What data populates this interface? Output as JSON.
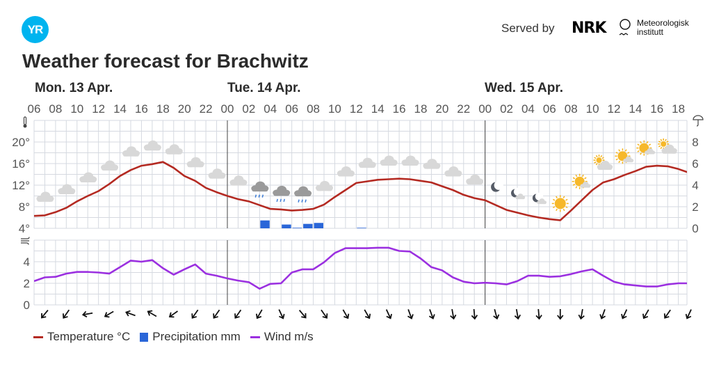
{
  "header": {
    "logo_text": "YR",
    "served_by": "Served by",
    "nrk_logo": "NRK",
    "met_line1": "Meteorologisk",
    "met_line2": "institutt",
    "title": "Weather forecast for Brachwitz"
  },
  "days": [
    {
      "label": "Mon. 13 Apr.",
      "start_hour_index": 0
    },
    {
      "label": "Tue. 14 Apr.",
      "start_hour_index": 18
    },
    {
      "label": "Wed. 15 Apr.",
      "start_hour_index": 42
    }
  ],
  "hour_labels": [
    "06",
    "08",
    "10",
    "12",
    "14",
    "16",
    "18",
    "20",
    "22",
    "00",
    "02",
    "04",
    "06",
    "08",
    "10",
    "12",
    "14",
    "16",
    "18",
    "20",
    "22",
    "00",
    "02",
    "04",
    "06",
    "08",
    "10",
    "12",
    "14",
    "16",
    "18"
  ],
  "axes": {
    "temp_ticks": [
      "20°",
      "16°",
      "12°",
      "8°",
      "4°"
    ],
    "temp_tick_values": [
      20,
      16,
      12,
      8,
      4
    ],
    "temp_range": [
      4,
      24
    ],
    "precip_ticks": [
      "8",
      "6",
      "4",
      "2",
      "0"
    ],
    "precip_tick_values": [
      8,
      6,
      4,
      2,
      0
    ],
    "precip_range": [
      0,
      10
    ],
    "wind_ticks": [
      "4",
      "2",
      "0"
    ],
    "wind_tick_values": [
      4,
      2,
      0
    ],
    "wind_range": [
      0,
      6
    ],
    "hours_span": 60.8
  },
  "colors": {
    "temperature": "#b42a22",
    "precipitation": "#2a66d8",
    "wind": "#9b30e0",
    "grid": "#d5d9e0",
    "day_line": "#444444"
  },
  "chart_data": {
    "type": "line",
    "title": "Weather forecast for Brachwitz",
    "x_unit": "hours from Mon 13 Apr 06:00",
    "temperature_c": [
      6.3,
      6.4,
      7.0,
      7.8,
      9.0,
      10.0,
      10.9,
      12.2,
      13.7,
      14.8,
      15.6,
      15.9,
      16.3,
      15.2,
      13.7,
      12.8,
      11.5,
      10.7,
      10.0,
      9.4,
      9.0,
      8.3,
      7.6,
      7.5,
      7.3,
      7.4,
      7.6,
      8.4,
      9.8,
      11.1,
      12.4,
      12.7,
      13.0,
      13.1,
      13.2,
      13.1,
      12.8,
      12.5,
      11.8,
      11.1,
      10.2,
      9.6,
      9.2,
      8.3,
      7.4,
      6.9,
      6.4,
      6.0,
      5.7,
      5.5,
      7.3,
      9.2,
      11.1,
      12.5,
      13.1,
      13.9,
      14.6,
      15.4,
      15.6,
      15.5,
      15.0,
      14.3
    ],
    "precipitation_mm": [
      {
        "hour": 21,
        "value": 0.73
      },
      {
        "hour": 23,
        "value": 0.35
      },
      {
        "hour": 24,
        "value": 0.05
      },
      {
        "hour": 25,
        "value": 0.41
      },
      {
        "hour": 26,
        "value": 0.5
      },
      {
        "hour": 30,
        "value": 0.05
      }
    ],
    "wind_ms": [
      2.2,
      2.55,
      2.6,
      2.9,
      3.05,
      3.05,
      3.0,
      2.9,
      3.5,
      4.1,
      4.0,
      4.15,
      3.4,
      2.8,
      3.3,
      3.75,
      2.9,
      2.7,
      2.45,
      2.25,
      2.1,
      1.5,
      1.95,
      2.0,
      3.0,
      3.3,
      3.3,
      3.95,
      4.8,
      5.25,
      5.25,
      5.25,
      5.3,
      5.3,
      5.0,
      4.95,
      4.3,
      3.5,
      3.2,
      2.55,
      2.15,
      2.0,
      2.05,
      2.0,
      1.9,
      2.2,
      2.7,
      2.7,
      2.6,
      2.65,
      2.85,
      3.1,
      3.3,
      2.7,
      2.15,
      1.9,
      1.8,
      1.7,
      1.7,
      1.9,
      2.0,
      2.0
    ],
    "symbols": [
      "cloudy",
      "cloudy",
      "cloudy",
      "cloudy",
      "cloudy",
      "cloudy",
      "cloudy",
      "cloudy",
      "cloudy",
      "cloudy",
      "rain",
      "rain",
      "rain",
      "cloudy",
      "cloudy",
      "cloudy",
      "cloudy",
      "cloudy",
      "cloudy",
      "cloudy",
      "cloudy",
      "clear-night",
      "partly-cloudy-night",
      "partly-cloudy-night",
      "clear-day",
      "partly-cloudy-day",
      "partly-cloudy-day-small-sun",
      "partly-cloudy-day",
      "partly-cloudy-day",
      "partly-cloudy-day-small-sun"
    ],
    "wind_direction_arrow_deg": [
      40,
      35,
      80,
      60,
      110,
      120,
      55,
      35,
      35,
      35,
      30,
      -25,
      -40,
      -35,
      -30,
      -30,
      -25,
      -20,
      -20,
      -10,
      -5,
      -15,
      -10,
      -5,
      0,
      10,
      20,
      25,
      30,
      35,
      25
    ]
  },
  "legend": [
    {
      "label": "Temperature °C"
    },
    {
      "label": "Precipitation mm"
    },
    {
      "label": "Wind m/s"
    }
  ]
}
